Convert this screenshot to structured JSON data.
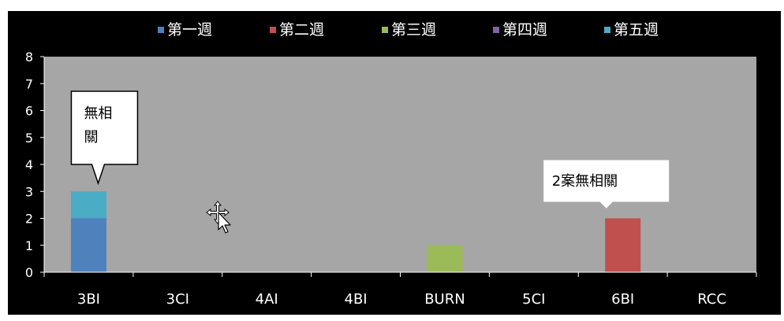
{
  "chart_data": {
    "type": "bar",
    "stacked": true,
    "categories": [
      "3BI",
      "3CI",
      "4AI",
      "4BI",
      "BURN",
      "5CI",
      "6BI",
      "RCC"
    ],
    "series": [
      {
        "name": "第一週",
        "color": "#4f81bd",
        "values": [
          2,
          0,
          0,
          0,
          0,
          0,
          0,
          0
        ]
      },
      {
        "name": "第二週",
        "color": "#c0504d",
        "values": [
          0,
          0,
          0,
          0,
          0,
          0,
          2,
          0
        ]
      },
      {
        "name": "第三週",
        "color": "#9bbb59",
        "values": [
          0,
          0,
          0,
          0,
          1,
          0,
          0,
          0
        ]
      },
      {
        "name": "第四週",
        "color": "#8064a2",
        "values": [
          0,
          0,
          0,
          0,
          0,
          0,
          0,
          0
        ]
      },
      {
        "name": "第五週",
        "color": "#4bacc6",
        "values": [
          1,
          0,
          0,
          0,
          0,
          0,
          0,
          0
        ]
      }
    ],
    "ylim": [
      0,
      8
    ],
    "yticks": [
      0,
      1,
      2,
      3,
      4,
      5,
      6,
      7,
      8
    ],
    "legend_position": "top",
    "grid": false,
    "title": "",
    "xlabel": "",
    "ylabel": "",
    "plot_background": "#a6a6a6",
    "chart_background": "#000000",
    "annotations": [
      {
        "category": "3BI",
        "text_lines": [
          "無相",
          "關"
        ]
      },
      {
        "category": "6BI",
        "text_lines": [
          "2案無相關"
        ]
      }
    ]
  }
}
